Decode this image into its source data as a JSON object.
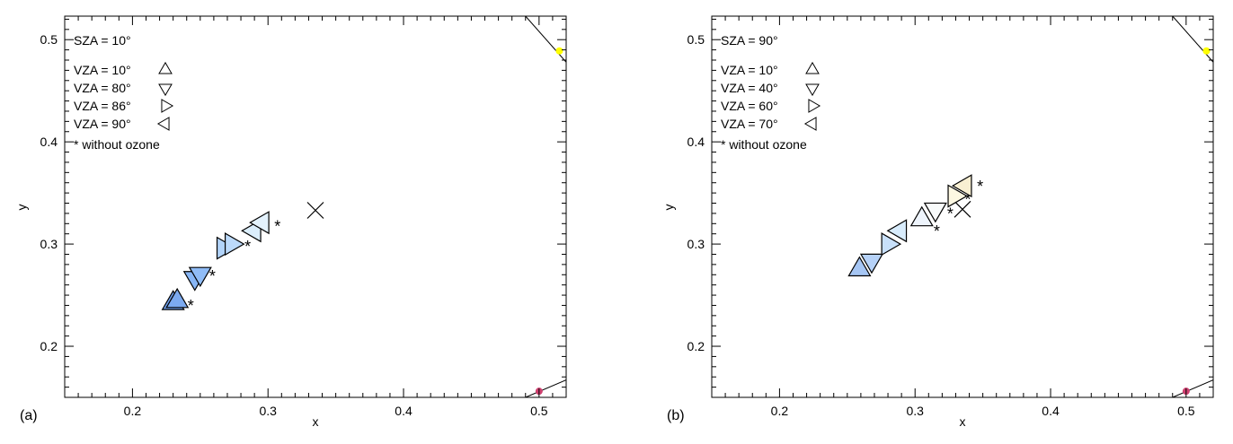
{
  "chart_data": [
    {
      "type": "scatter",
      "panel_label": "(a)",
      "xlabel": "x",
      "ylabel": "y",
      "xlim": [
        0.15,
        0.52
      ],
      "ylim": [
        0.15,
        0.523
      ],
      "xticks": [
        0.2,
        0.3,
        0.4,
        0.5
      ],
      "yticks": [
        0.2,
        0.3,
        0.4,
        0.5
      ],
      "grid": false,
      "legend_placement": "top-left",
      "legend_title": "SZA = 10°",
      "legend": [
        {
          "label": "VZA = 10°",
          "marker": "triangle-up"
        },
        {
          "label": "VZA = 80°",
          "marker": "triangle-down"
        },
        {
          "label": "VZA = 86°",
          "marker": "triangle-right"
        },
        {
          "label": "VZA = 90°",
          "marker": "triangle-left"
        }
      ],
      "legend_note": "* without ozone",
      "series": [
        {
          "marker": "triangle-up",
          "points": [
            [
              0.23,
              0.242,
              "#6f9fec"
            ],
            [
              0.233,
              0.244,
              "#7caaf0"
            ]
          ],
          "no_ozone": [
            0.243,
            0.242
          ]
        },
        {
          "marker": "triangle-down",
          "points": [
            [
              0.246,
              0.267,
              "#88b6f5"
            ],
            [
              0.25,
              0.271,
              "#90bcf6"
            ]
          ],
          "no_ozone": [
            0.259,
            0.271
          ]
        },
        {
          "marker": "triangle-right",
          "points": [
            [
              0.267,
              0.296,
              "#b2d4fa"
            ],
            [
              0.273,
              0.3,
              "#bcdafb"
            ]
          ],
          "no_ozone": [
            0.285,
            0.3
          ]
        },
        {
          "marker": "triangle-left",
          "points": [
            [
              0.29,
              0.313,
              "#dbeefc"
            ],
            [
              0.296,
              0.321,
              "#e3f2fd"
            ]
          ],
          "no_ozone": [
            0.307,
            0.32
          ]
        }
      ],
      "white_point": [
        0.335,
        0.333
      ],
      "locus_points": [
        {
          "x": 0.515,
          "y": 0.489,
          "color": "#ffff00"
        },
        {
          "x": 0.5,
          "y": 0.156,
          "color": "#d04070"
        }
      ]
    },
    {
      "type": "scatter",
      "panel_label": "(b)",
      "xlabel": "x",
      "ylabel": "y",
      "xlim": [
        0.15,
        0.52
      ],
      "ylim": [
        0.15,
        0.523
      ],
      "xticks": [
        0.2,
        0.3,
        0.4,
        0.5
      ],
      "yticks": [
        0.2,
        0.3,
        0.4,
        0.5
      ],
      "grid": false,
      "legend_placement": "top-left",
      "legend_title": "SZA = 90°",
      "legend": [
        {
          "label": "VZA = 10°",
          "marker": "triangle-up"
        },
        {
          "label": "VZA = 40°",
          "marker": "triangle-down"
        },
        {
          "label": "VZA = 60°",
          "marker": "triangle-right"
        },
        {
          "label": "VZA = 70°",
          "marker": "triangle-left"
        }
      ],
      "legend_note": "* without ozone",
      "series": [
        {
          "marker": "triangle-up",
          "points": [
            [
              0.259,
              0.275,
              "#a6c6f4"
            ],
            [
              0.305,
              0.324,
              "#eef4fc"
            ]
          ],
          "no_ozone": [
            0.316,
            0.315
          ]
        },
        {
          "marker": "triangle-down",
          "points": [
            [
              0.268,
              0.284,
              "#b6d2f8"
            ],
            [
              0.315,
              0.334,
              "#f8fafa"
            ]
          ],
          "no_ozone": [
            0.326,
            0.332
          ]
        },
        {
          "marker": "triangle-right",
          "points": [
            [
              0.28,
              0.3,
              "#c8e0fa"
            ],
            [
              0.329,
              0.347,
              "#fdf8e2"
            ]
          ],
          "no_ozone": [
            0.339,
            0.346
          ]
        },
        {
          "marker": "triangle-left",
          "points": [
            [
              0.289,
              0.313,
              "#d8ecfc"
            ],
            [
              0.337,
              0.357,
              "#f8efd2"
            ]
          ],
          "no_ozone": [
            0.348,
            0.359
          ]
        }
      ],
      "white_point": [
        0.335,
        0.334
      ],
      "locus_points": [
        {
          "x": 0.515,
          "y": 0.489,
          "color": "#ffff00"
        },
        {
          "x": 0.5,
          "y": 0.156,
          "color": "#d04070"
        }
      ]
    }
  ]
}
